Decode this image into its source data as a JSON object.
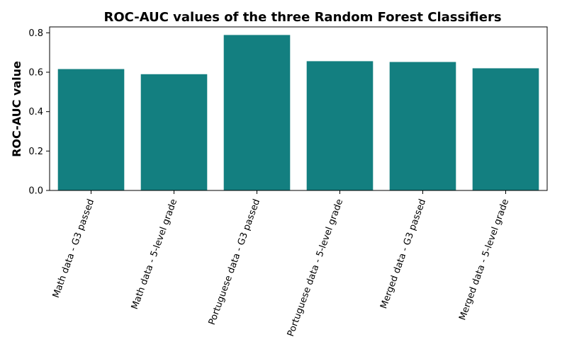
{
  "chart_data": {
    "type": "bar",
    "title": "ROC-AUC values of the three Random Forest Classifiers",
    "xlabel": "",
    "ylabel": "ROC-AUC value",
    "categories": [
      "Math data - G3 passed",
      "Math data - 5-level grade",
      "Portuguese data - G3 passed",
      "Portuguese data - 5-level grade",
      "Merged data - G3 passed",
      "Merged data - 5-level grade"
    ],
    "values": [
      0.616,
      0.59,
      0.789,
      0.656,
      0.652,
      0.62
    ],
    "ylim": [
      0,
      0.83
    ],
    "yticks": [
      0.0,
      0.2,
      0.4,
      0.6,
      0.8
    ],
    "ytick_labels": [
      "0.0",
      "0.2",
      "0.4",
      "0.6",
      "0.8"
    ],
    "bar_color": "#137f80",
    "grid": false,
    "legend": "none"
  }
}
